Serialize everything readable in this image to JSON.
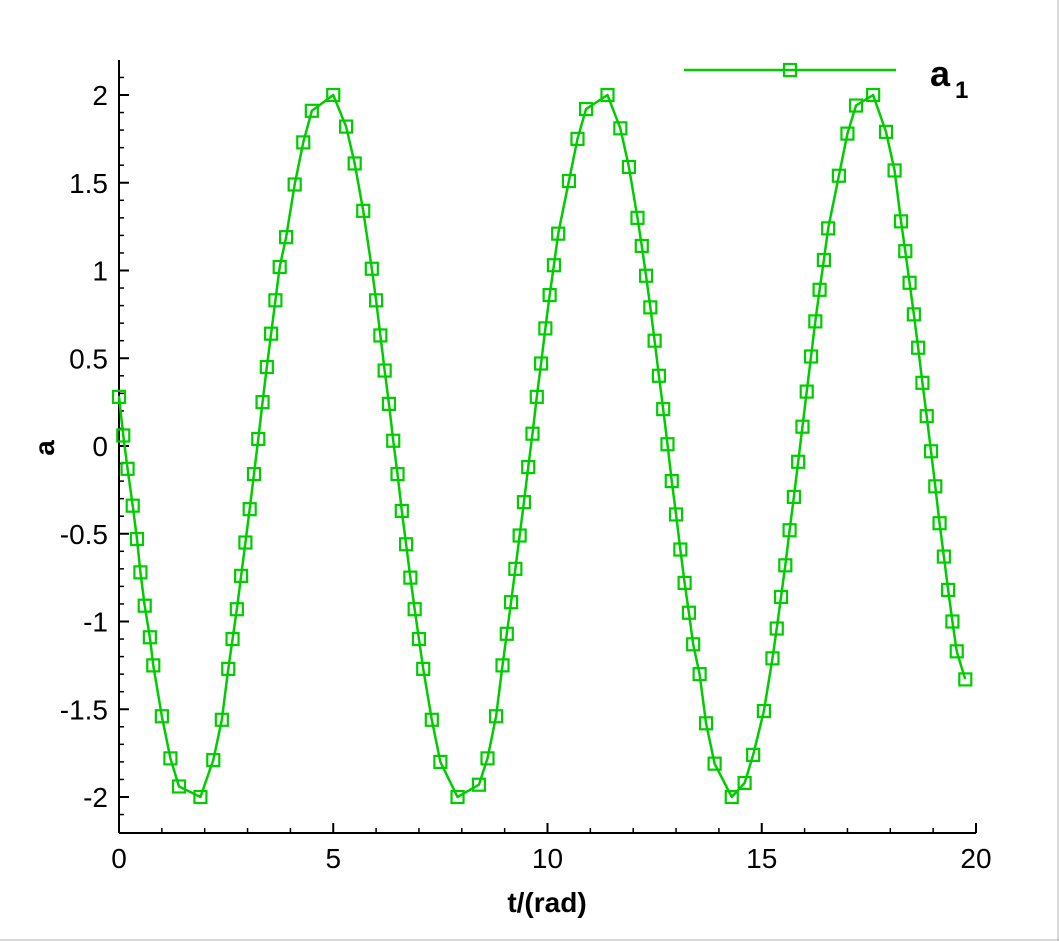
{
  "chart_data": {
    "type": "line",
    "title": "",
    "xlabel": "t/(rad)",
    "ylabel": "a",
    "xlim": [
      0,
      20
    ],
    "ylim": [
      -2.2,
      2.2
    ],
    "xticks": [
      0,
      5,
      10,
      15,
      20
    ],
    "yticks": [
      -2,
      -1.5,
      -1,
      -0.5,
      0,
      0.5,
      1,
      1.5,
      2
    ],
    "xtick_labels": [
      "0",
      "5",
      "10",
      "15",
      "20"
    ],
    "ytick_labels": [
      "-2",
      "-1.5",
      "-1",
      "-0.5",
      "0",
      "0.5",
      "1",
      "1.5",
      "2"
    ],
    "grid": false,
    "legend_position": "top-right",
    "series": [
      {
        "name": "a",
        "name_subscript": "1",
        "color": "#00cc00",
        "marker": "square-open",
        "points": [
          [
            0.0,
            0.28
          ],
          [
            0.1,
            0.06
          ],
          [
            0.2,
            -0.13
          ],
          [
            0.32,
            -0.34
          ],
          [
            0.42,
            -0.53
          ],
          [
            0.5,
            -0.72
          ],
          [
            0.6,
            -0.91
          ],
          [
            0.72,
            -1.09
          ],
          [
            0.8,
            -1.25
          ],
          [
            1.0,
            -1.54
          ],
          [
            1.2,
            -1.78
          ],
          [
            1.4,
            -1.94
          ],
          [
            1.9,
            -2.0
          ],
          [
            2.2,
            -1.79
          ],
          [
            2.4,
            -1.56
          ],
          [
            2.55,
            -1.27
          ],
          [
            2.65,
            -1.1
          ],
          [
            2.75,
            -0.93
          ],
          [
            2.85,
            -0.74
          ],
          [
            2.95,
            -0.55
          ],
          [
            3.05,
            -0.36
          ],
          [
            3.15,
            -0.16
          ],
          [
            3.25,
            0.04
          ],
          [
            3.35,
            0.25
          ],
          [
            3.45,
            0.45
          ],
          [
            3.55,
            0.64
          ],
          [
            3.65,
            0.83
          ],
          [
            3.75,
            1.02
          ],
          [
            3.9,
            1.19
          ],
          [
            4.1,
            1.49
          ],
          [
            4.3,
            1.73
          ],
          [
            4.5,
            1.91
          ],
          [
            5.0,
            2.0
          ],
          [
            5.3,
            1.82
          ],
          [
            5.5,
            1.61
          ],
          [
            5.7,
            1.34
          ],
          [
            5.9,
            1.01
          ],
          [
            6.0,
            0.83
          ],
          [
            6.1,
            0.63
          ],
          [
            6.2,
            0.43
          ],
          [
            6.3,
            0.24
          ],
          [
            6.4,
            0.03
          ],
          [
            6.5,
            -0.16
          ],
          [
            6.6,
            -0.37
          ],
          [
            6.7,
            -0.56
          ],
          [
            6.8,
            -0.75
          ],
          [
            6.9,
            -0.93
          ],
          [
            7.0,
            -1.1
          ],
          [
            7.1,
            -1.27
          ],
          [
            7.3,
            -1.56
          ],
          [
            7.5,
            -1.8
          ],
          [
            7.9,
            -2.0
          ],
          [
            8.4,
            -1.93
          ],
          [
            8.6,
            -1.78
          ],
          [
            8.8,
            -1.54
          ],
          [
            8.95,
            -1.25
          ],
          [
            9.05,
            -1.07
          ],
          [
            9.15,
            -0.89
          ],
          [
            9.25,
            -0.7
          ],
          [
            9.35,
            -0.51
          ],
          [
            9.45,
            -0.32
          ],
          [
            9.55,
            -0.12
          ],
          [
            9.65,
            0.07
          ],
          [
            9.75,
            0.28
          ],
          [
            9.85,
            0.47
          ],
          [
            9.95,
            0.67
          ],
          [
            10.05,
            0.86
          ],
          [
            10.15,
            1.03
          ],
          [
            10.25,
            1.21
          ],
          [
            10.5,
            1.51
          ],
          [
            10.7,
            1.75
          ],
          [
            10.9,
            1.92
          ],
          [
            11.4,
            2.0
          ],
          [
            11.7,
            1.81
          ],
          [
            11.9,
            1.59
          ],
          [
            12.1,
            1.3
          ],
          [
            12.2,
            1.14
          ],
          [
            12.3,
            0.97
          ],
          [
            12.4,
            0.79
          ],
          [
            12.5,
            0.6
          ],
          [
            12.6,
            0.4
          ],
          [
            12.7,
            0.21
          ],
          [
            12.8,
            0.01
          ],
          [
            12.9,
            -0.2
          ],
          [
            13.0,
            -0.39
          ],
          [
            13.1,
            -0.59
          ],
          [
            13.2,
            -0.78
          ],
          [
            13.3,
            -0.95
          ],
          [
            13.4,
            -1.13
          ],
          [
            13.55,
            -1.3
          ],
          [
            13.7,
            -1.58
          ],
          [
            13.9,
            -1.81
          ],
          [
            14.3,
            -2.0
          ],
          [
            14.6,
            -1.92
          ],
          [
            14.8,
            -1.76
          ],
          [
            15.05,
            -1.51
          ],
          [
            15.25,
            -1.21
          ],
          [
            15.35,
            -1.04
          ],
          [
            15.45,
            -0.86
          ],
          [
            15.55,
            -0.68
          ],
          [
            15.65,
            -0.48
          ],
          [
            15.75,
            -0.29
          ],
          [
            15.85,
            -0.09
          ],
          [
            15.95,
            0.11
          ],
          [
            16.05,
            0.31
          ],
          [
            16.15,
            0.51
          ],
          [
            16.25,
            0.71
          ],
          [
            16.35,
            0.89
          ],
          [
            16.45,
            1.06
          ],
          [
            16.55,
            1.24
          ],
          [
            16.8,
            1.54
          ],
          [
            17.0,
            1.78
          ],
          [
            17.2,
            1.94
          ],
          [
            17.6,
            2.0
          ],
          [
            17.9,
            1.79
          ],
          [
            18.1,
            1.57
          ],
          [
            18.25,
            1.28
          ],
          [
            18.35,
            1.11
          ],
          [
            18.45,
            0.93
          ],
          [
            18.55,
            0.75
          ],
          [
            18.65,
            0.56
          ],
          [
            18.75,
            0.36
          ],
          [
            18.85,
            0.17
          ],
          [
            18.95,
            -0.03
          ],
          [
            19.05,
            -0.23
          ],
          [
            19.15,
            -0.44
          ],
          [
            19.25,
            -0.63
          ],
          [
            19.35,
            -0.82
          ],
          [
            19.45,
            -1.0
          ],
          [
            19.55,
            -1.17
          ],
          [
            19.75,
            -1.33
          ]
        ]
      }
    ]
  }
}
